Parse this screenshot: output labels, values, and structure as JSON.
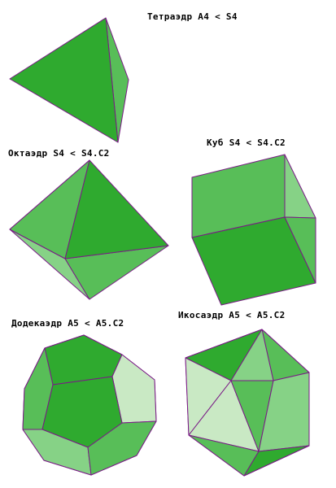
{
  "labels": {
    "tetrahedron": "Тетраэдр  A4 < S4",
    "octahedron": "Октаэдр  S4 < S4.C2",
    "cube": "Куб  S4 < S4.C2",
    "dodecahedron": "Додекаэдр  A5 < A5.C2",
    "icosahedron": "Икосаэдр  A5 < A5.C2"
  },
  "colors": {
    "face_dark": "#2faa2f",
    "face_mid": "#58be58",
    "face_light": "#86d286",
    "face_pale": "#c9e9c4",
    "edge": "#7a1a86",
    "background": "#ffffff"
  }
}
